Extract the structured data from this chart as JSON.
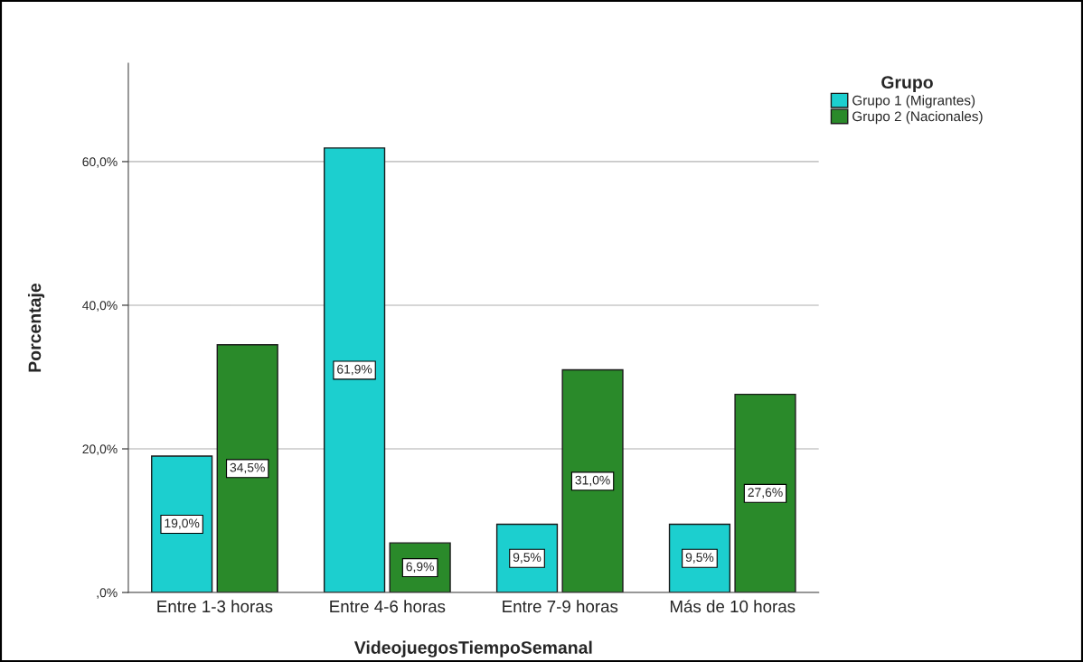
{
  "chart_data": {
    "type": "bar",
    "xlabel": "VideojuegosTiempoSemanal",
    "ylabel": "Porcentaje",
    "categories": [
      "Entre 1-3 horas",
      "Entre 4-6 horas",
      "Entre 7-9 horas",
      "Más de 10 horas"
    ],
    "series": [
      {
        "name": "Grupo 1 (Migrantes)",
        "color": "#1ccfcf",
        "values": [
          19.0,
          61.9,
          9.5,
          9.5
        ],
        "value_labels": [
          "19,0%",
          "61,9%",
          "9,5%",
          "9,5%"
        ]
      },
      {
        "name": "Grupo 2 (Nacionales)",
        "color": "#2a8a2a",
        "values": [
          34.5,
          6.9,
          31.0,
          27.6
        ],
        "value_labels": [
          "34,5%",
          "6,9%",
          "31,0%",
          "27,6%"
        ]
      }
    ],
    "ylim": [
      0,
      73.7
    ],
    "yticks": [
      {
        "value": 0,
        "label": ",0%"
      },
      {
        "value": 20,
        "label": "20,0%"
      },
      {
        "value": 40,
        "label": "40,0%"
      },
      {
        "value": 60,
        "label": "60,0%"
      }
    ],
    "grid": "y",
    "legend": "top right",
    "legend_title": "Grupo"
  }
}
